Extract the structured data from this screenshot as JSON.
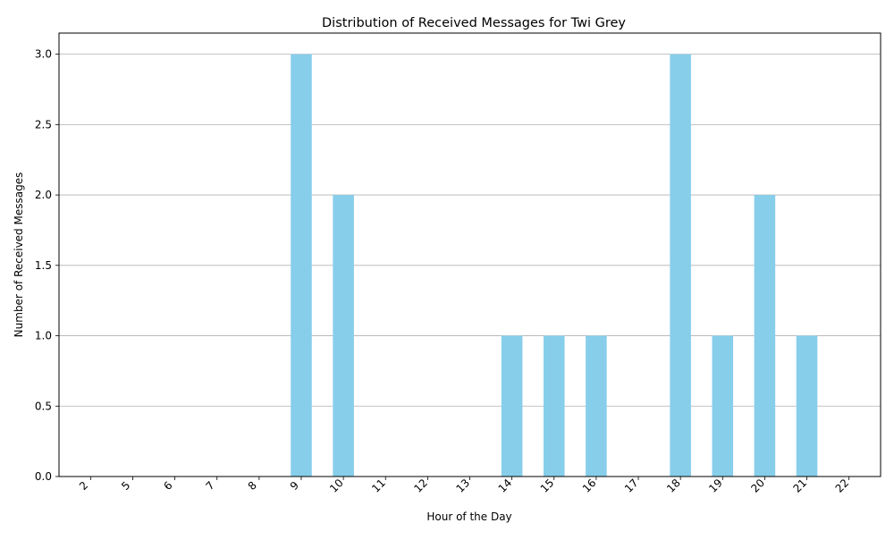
{
  "chart_data": {
    "type": "bar",
    "title": "Distribution of Received Messages for Twi Grey",
    "xlabel": "Hour of the Day",
    "ylabel": "Number of Received Messages",
    "categories": [
      "2",
      "5",
      "6",
      "7",
      "8",
      "9",
      "10",
      "11",
      "12",
      "13",
      "14",
      "15",
      "16",
      "17",
      "18",
      "19",
      "20",
      "21",
      "22"
    ],
    "values": [
      0,
      0,
      0,
      0,
      0,
      3,
      2,
      0,
      0,
      0,
      1,
      1,
      1,
      0,
      3,
      1,
      2,
      1,
      0
    ],
    "ylim": [
      0,
      3.15
    ],
    "yticks": [
      "0.0",
      "0.5",
      "1.0",
      "1.5",
      "2.0",
      "2.5",
      "3.0"
    ],
    "grid": "y-axis only",
    "legend": "none",
    "colors": {
      "bar": "#87CEEB",
      "grid": "#b0b0b0",
      "axis": "#000000"
    }
  }
}
